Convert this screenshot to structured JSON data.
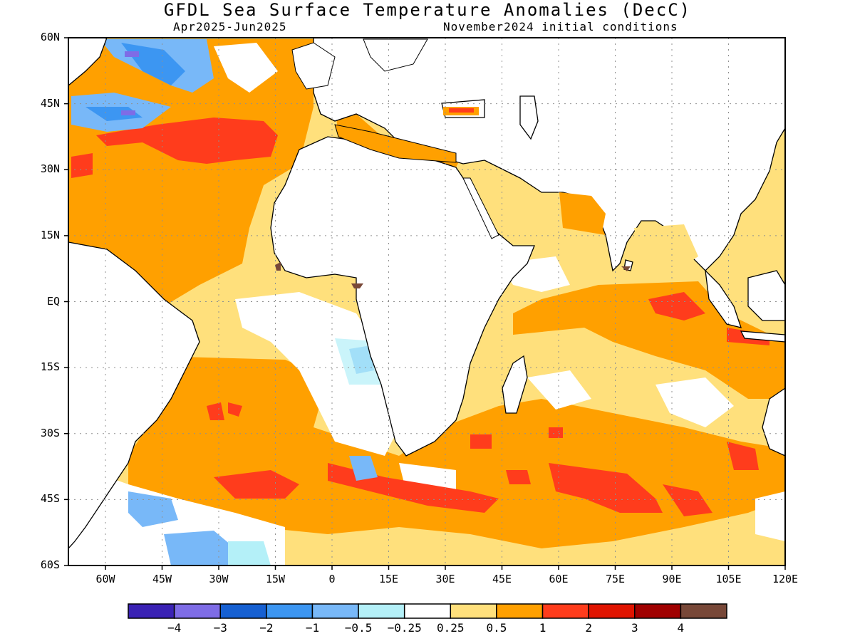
{
  "title": "GFDL Sea Surface Temperature Anomalies (DecC)",
  "subtitle_left": "Apr2025-Jun2025",
  "subtitle_right": "November2024 initial conditions",
  "lat_labels": [
    "60N",
    "45N",
    "30N",
    "15N",
    "EQ",
    "15S",
    "30S",
    "45S",
    "60S"
  ],
  "lon_labels": [
    "60W",
    "45W",
    "30W",
    "15W",
    "0",
    "15E",
    "30E",
    "45E",
    "60E",
    "75E",
    "90E",
    "105E",
    "120E"
  ],
  "colorbar": {
    "colors": [
      "#3a22b4",
      "#7e6ce6",
      "#1660d2",
      "#3c96f2",
      "#78b8f8",
      "#b4f0f8",
      "#ffffff",
      "#ffe07c",
      "#ffa000",
      "#ff3c1c",
      "#e01400",
      "#a00000",
      "#784838"
    ],
    "tick_labels": [
      "−4",
      "−3",
      "−2",
      "−1",
      "−0.5",
      "−0.25",
      "0.25",
      "0.5",
      "1",
      "2",
      "3",
      "4"
    ]
  },
  "land_color": "#ffffff",
  "coast_color": "#000000"
}
